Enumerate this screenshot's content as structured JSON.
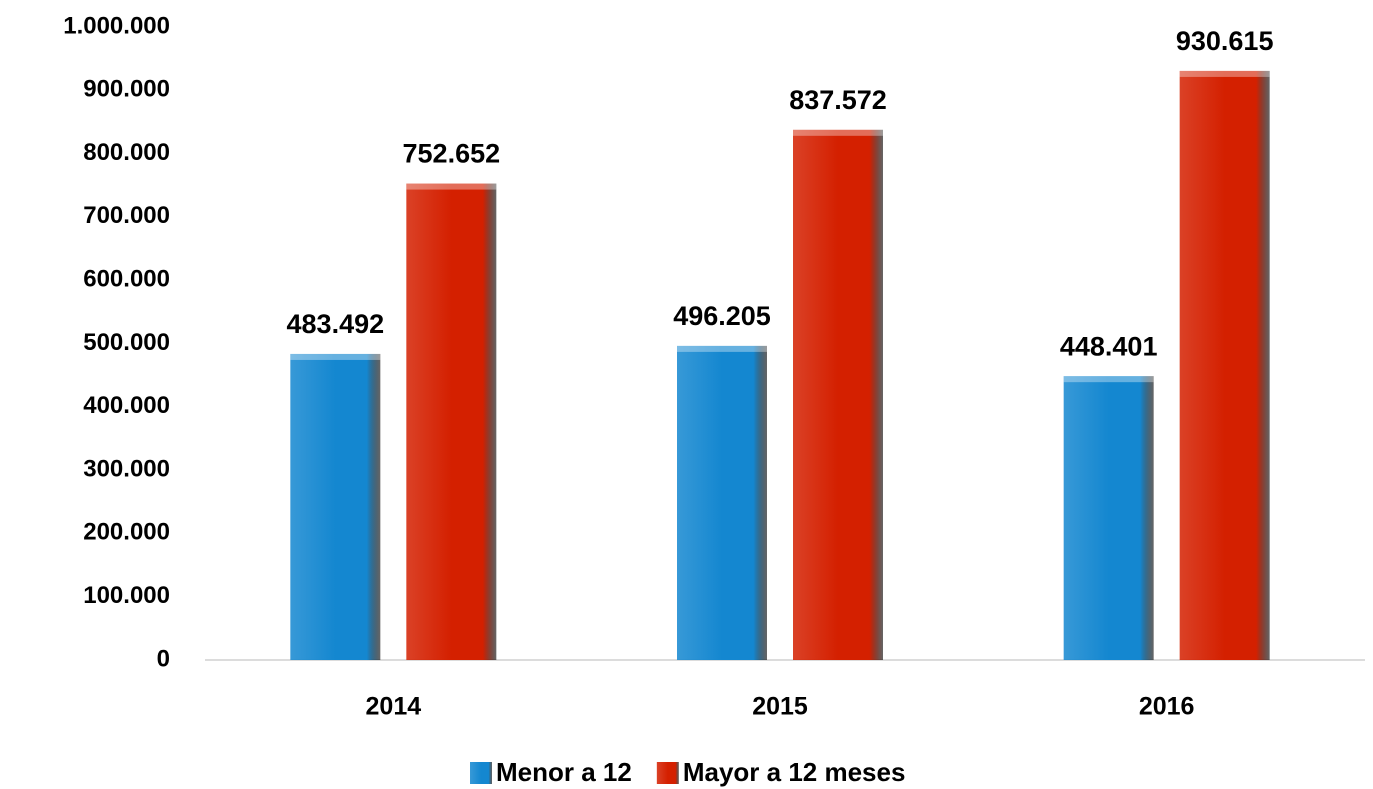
{
  "chart_data": {
    "type": "bar",
    "categories": [
      "2014",
      "2015",
      "2016"
    ],
    "series": [
      {
        "name": "Menor a 12",
        "color": "#1487d0",
        "values": [
          483492,
          496205,
          448401
        ],
        "value_labels": [
          "483.492",
          "496.205",
          "448.401"
        ]
      },
      {
        "name": "Mayor a 12 meses",
        "color": "#d42000",
        "values": [
          752652,
          837572,
          930615
        ],
        "value_labels": [
          "752.652",
          "837.572",
          "930.615"
        ]
      }
    ],
    "ylim": [
      0,
      1000000
    ],
    "yticks": [
      0,
      {
        "value": 100000,
        "label": "100.000"
      },
      {
        "value": 200000,
        "label": "200.000"
      },
      {
        "value": 300000,
        "label": "300.000"
      },
      {
        "value": 400000,
        "label": "400.000"
      },
      {
        "value": 500000,
        "label": "500.000"
      },
      {
        "value": 600000,
        "label": "600.000"
      },
      {
        "value": 700000,
        "label": "700.000"
      },
      {
        "value": 800000,
        "label": "800.000"
      },
      {
        "value": 900000,
        "label": "900.000"
      },
      {
        "value": 1000000,
        "label": "1.000.000"
      }
    ],
    "legend": "bottom"
  }
}
